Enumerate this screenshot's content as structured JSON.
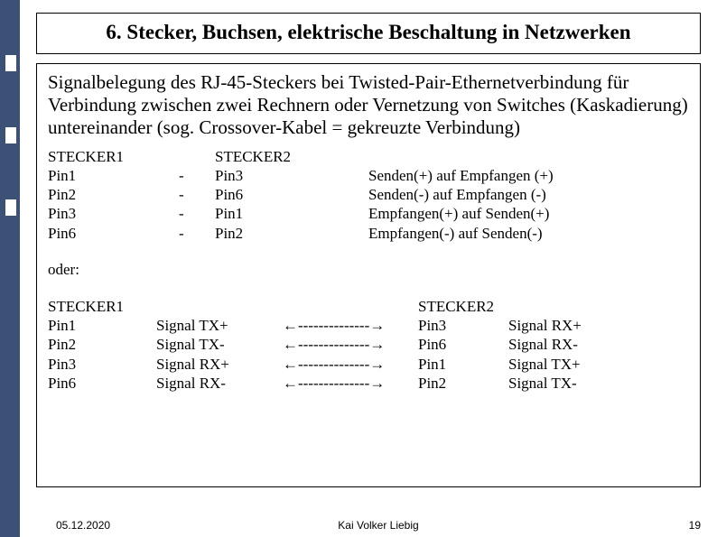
{
  "leftBoxes": [
    60,
    140,
    220
  ],
  "title": "6. Stecker, Buchsen, elektrische Beschaltung in Netzwerken",
  "intro": "Signalbelegung des RJ-45-Steckers bei Twisted-Pair-Ethernetverbindung für Verbindung zwischen zwei Rechnern oder Vernetzung von Switches (Kaskadierung) untereinander (sog. Crossover-Kabel = gekreuzte Verbindung)",
  "table1": {
    "head": {
      "c1": "STECKER1",
      "c2": "",
      "c3": "STECKER2",
      "c4": ""
    },
    "rows": [
      {
        "c1": "Pin1",
        "c2": "-",
        "c3": "Pin3",
        "c4": "Senden(+) auf Empfangen (+)"
      },
      {
        "c1": "Pin2",
        "c2": "-",
        "c3": "Pin6",
        "c4": "Senden(-) auf Empfangen (-)"
      },
      {
        "c1": "Pin3",
        "c2": "-",
        "c3": "Pin1",
        "c4": "Empfangen(+) auf Senden(+)"
      },
      {
        "c1": "Pin6",
        "c2": "-",
        "c3": "Pin2",
        "c4": "Empfangen(-) auf Senden(-)"
      }
    ]
  },
  "oder": "oder:",
  "table2": {
    "head": {
      "d1": "STECKER1",
      "d2": "",
      "d3": "",
      "d4": "STECKER2",
      "d5": ""
    },
    "rows": [
      {
        "d1": "Pin1",
        "d2": "Signal TX+",
        "d3": "←--------------→",
        "d4": "Pin3",
        "d5": "Signal RX+"
      },
      {
        "d1": "Pin2",
        "d2": "Signal TX-",
        "d3": "←--------------→",
        "d4": "Pin6",
        "d5": "Signal RX-"
      },
      {
        "d1": "Pin3",
        "d2": "Signal RX+",
        "d3": "←--------------→",
        "d4": "Pin1",
        "d5": "Signal TX+"
      },
      {
        "d1": "Pin6",
        "d2": "Signal RX-",
        "d3": "←--------------→",
        "d4": "Pin2",
        "d5": "Signal TX-"
      }
    ]
  },
  "footer": {
    "date": "05.12.2020",
    "author": "Kai Volker Liebig",
    "page": "19"
  }
}
